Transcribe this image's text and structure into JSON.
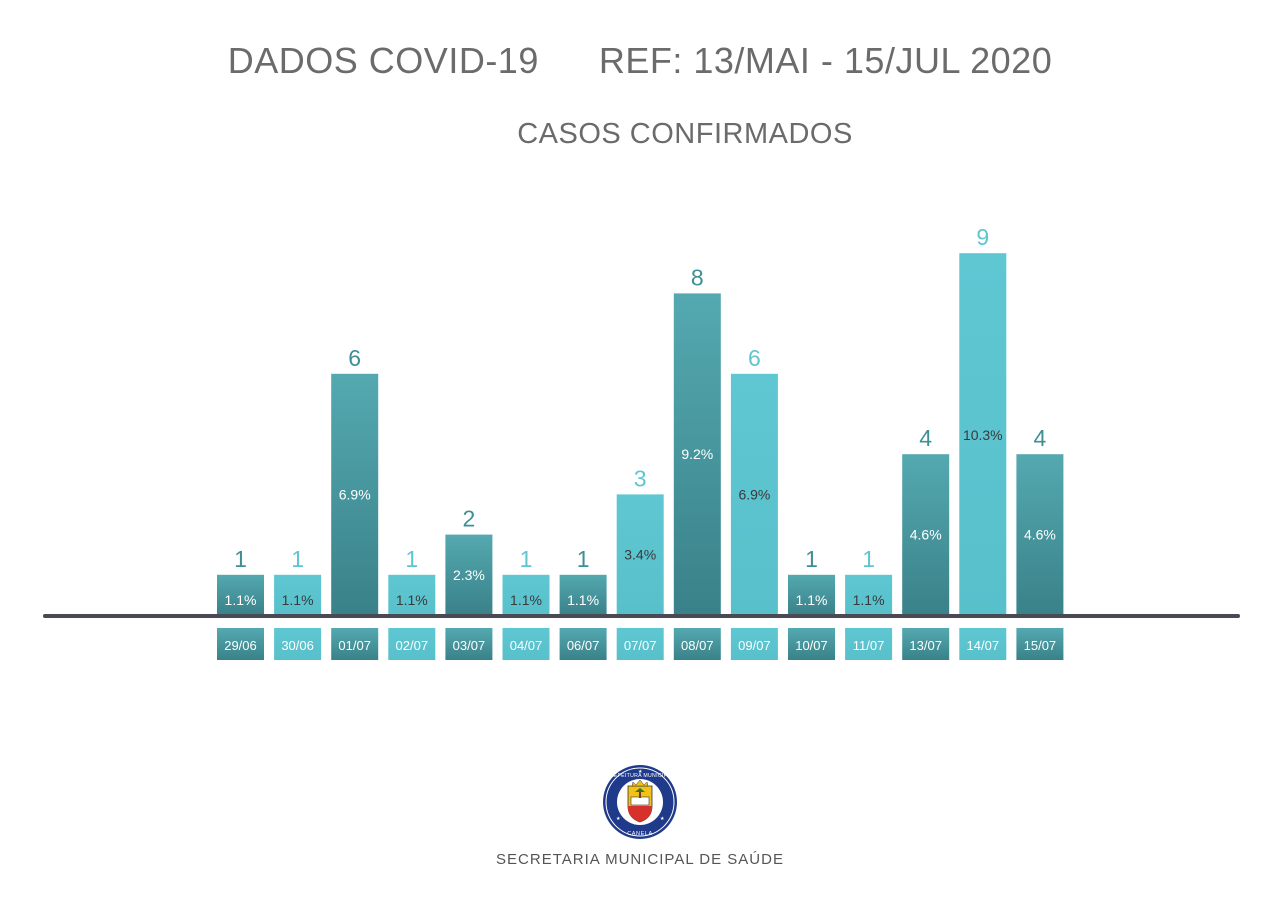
{
  "header": {
    "title": "DADOS COVID-19",
    "reference": "REF: 13/MAI - 15/JUL 2020",
    "subtitle": "CASOS CONFIRMADOS"
  },
  "footer": {
    "text": "SECRETARIA MUNICIPAL DE SAÚDE"
  },
  "logo": {
    "top_text": "PREFEITURA MUNICIPAL",
    "bottom_text": "CANELA"
  },
  "colors": {
    "dark_bar": "#3f8f96",
    "light_bar": "#5ec6d1",
    "axis": "#4a4a55",
    "text": "#6b6b6b"
  },
  "chart_data": {
    "type": "bar",
    "title": "CASOS CONFIRMADOS",
    "categories": [
      "29/06",
      "30/06",
      "01/07",
      "02/07",
      "03/07",
      "04/07",
      "06/07",
      "07/07",
      "08/07",
      "09/07",
      "10/07",
      "11/07",
      "13/07",
      "14/07",
      "15/07"
    ],
    "values": [
      1,
      1,
      6,
      1,
      2,
      1,
      1,
      3,
      8,
      6,
      1,
      1,
      4,
      9,
      4
    ],
    "percent_labels": [
      "1.1%",
      "1.1%",
      "6.9%",
      "1.1%",
      "2.3%",
      "1.1%",
      "1.1%",
      "3.4%",
      "9.2%",
      "6.9%",
      "1.1%",
      "1.1%",
      "4.6%",
      "10.3%",
      "4.6%"
    ],
    "bar_shades": [
      "dark",
      "light",
      "dark",
      "light",
      "dark",
      "light",
      "dark",
      "light",
      "dark",
      "light",
      "dark",
      "light",
      "dark",
      "light",
      "dark"
    ],
    "xlabel": "",
    "ylabel": "",
    "ylim": [
      0,
      9
    ],
    "grid": false,
    "legend": "none"
  }
}
